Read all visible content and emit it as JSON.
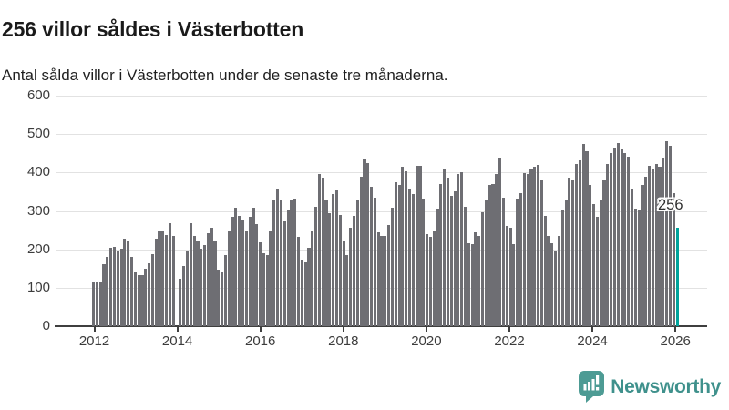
{
  "header": {
    "title": "256 villor såldes i Västerbotten",
    "subtitle": "Antal sålda villor i Västerbotten under de senaste tre månaderna."
  },
  "chart_data": {
    "type": "bar",
    "title": "256 villor såldes i Västerbotten",
    "subtitle": "Antal sålda villor i Västerbotten under de senaste tre månaderna.",
    "ylabel": "Antal sålda villor",
    "xlabel": "",
    "unit": "villor",
    "frequency": "monthly",
    "x_start": "2011-12",
    "ylim": [
      0,
      600
    ],
    "y_ticks": [
      0,
      100,
      200,
      300,
      400,
      500,
      600
    ],
    "x_tick_years": [
      2012,
      2014,
      2016,
      2018,
      2020,
      2022,
      2024,
      2026
    ],
    "grid": true,
    "bar_color": "#6e6e73",
    "highlight_color": "#00a39b",
    "highlight": {
      "index": 168,
      "value": 256,
      "label": "256"
    },
    "values": [
      113,
      117,
      115,
      161,
      181,
      203,
      206,
      195,
      202,
      227,
      220,
      180,
      142,
      133,
      133,
      150,
      163,
      188,
      228,
      250,
      250,
      238,
      268,
      236,
      null,
      124,
      157,
      198,
      268,
      234,
      222,
      202,
      210,
      242,
      256,
      224,
      146,
      139,
      185,
      248,
      285,
      308,
      288,
      278,
      248,
      284,
      309,
      266,
      218,
      189,
      185,
      248,
      327,
      359,
      327,
      272,
      304,
      329,
      331,
      232,
      173,
      165,
      203,
      248,
      310,
      397,
      387,
      330,
      293,
      343,
      353,
      289,
      220,
      185,
      256,
      288,
      327,
      390,
      434,
      424,
      363,
      335,
      244,
      236,
      236,
      264,
      308,
      375,
      367,
      416,
      404,
      359,
      343,
      418,
      417,
      331,
      240,
      232,
      248,
      307,
      371,
      410,
      387,
      339,
      351,
      395,
      402,
      311,
      217,
      213,
      244,
      236,
      296,
      329,
      367,
      371,
      395,
      438,
      335,
      260,
      256,
      213,
      331,
      347,
      398,
      397,
      408,
      414,
      420,
      379,
      288,
      236,
      217,
      197,
      236,
      304,
      327,
      387,
      379,
      422,
      432,
      474,
      455,
      367,
      319,
      284,
      327,
      379,
      422,
      450,
      466,
      477,
      460,
      450,
      442,
      359,
      307,
      303,
      367,
      390,
      418,
      410,
      422,
      414,
      438,
      481,
      470,
      347,
      256
    ]
  },
  "footer": {
    "brand": "Newsworthy",
    "logo_icon": "newsworthy-speech-bubble-bars",
    "brand_color": "#3f918c",
    "icon_color": "#4d9b94"
  }
}
